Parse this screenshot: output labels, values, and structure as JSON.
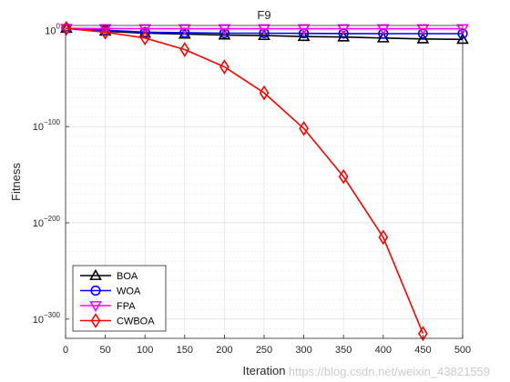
{
  "watermark": "https://blog.csdn.net/weixin_43821559",
  "chart_data": {
    "type": "line",
    "title": "F9",
    "xlabel": "Iteration",
    "ylabel": "Fitness",
    "y_scale": "log",
    "xlim": [
      0,
      500
    ],
    "ylim_exponent": [
      -320,
      5
    ],
    "x_ticks": [
      "0",
      "50",
      "100",
      "150",
      "200",
      "250",
      "300",
      "350",
      "400",
      "450",
      "500"
    ],
    "y_tick_exponents": [
      0,
      -100,
      -200,
      -300
    ],
    "grid": true,
    "legend_position": "bottom-left",
    "series": [
      {
        "name": "BOA",
        "color": "#000000",
        "marker": "triangle-up",
        "x": [
          1,
          50,
          100,
          150,
          200,
          250,
          300,
          350,
          400,
          450,
          500
        ],
        "log10_y": [
          2,
          -1,
          -3,
          -4,
          -5,
          -5.5,
          -6.5,
          -7,
          -8,
          -9,
          -9.5
        ]
      },
      {
        "name": "WOA",
        "color": "#0000FF",
        "marker": "circle",
        "x": [
          1,
          50,
          100,
          150,
          200,
          250,
          300,
          350,
          400,
          450,
          500
        ],
        "log10_y": [
          2,
          0,
          -2,
          -2.5,
          -3,
          -3,
          -3.2,
          -3.4,
          -3.5,
          -3.5,
          -3.5
        ]
      },
      {
        "name": "FPA",
        "color": "#FF00FF",
        "marker": "triangle-down",
        "x": [
          1,
          50,
          100,
          150,
          200,
          250,
          300,
          350,
          400,
          450,
          500
        ],
        "log10_y": [
          2,
          1.8,
          1.7,
          1.6,
          1.6,
          1.6,
          1.6,
          1.6,
          1.6,
          1.6,
          1.6
        ]
      },
      {
        "name": "CWBOA",
        "color": "#FF0000",
        "marker": "diamond",
        "x": [
          1,
          50,
          100,
          150,
          200,
          250,
          300,
          350,
          400,
          450
        ],
        "log10_y": [
          2,
          -2,
          -8,
          -20,
          -38,
          -65,
          -102,
          -152,
          -215,
          -315
        ]
      }
    ]
  }
}
